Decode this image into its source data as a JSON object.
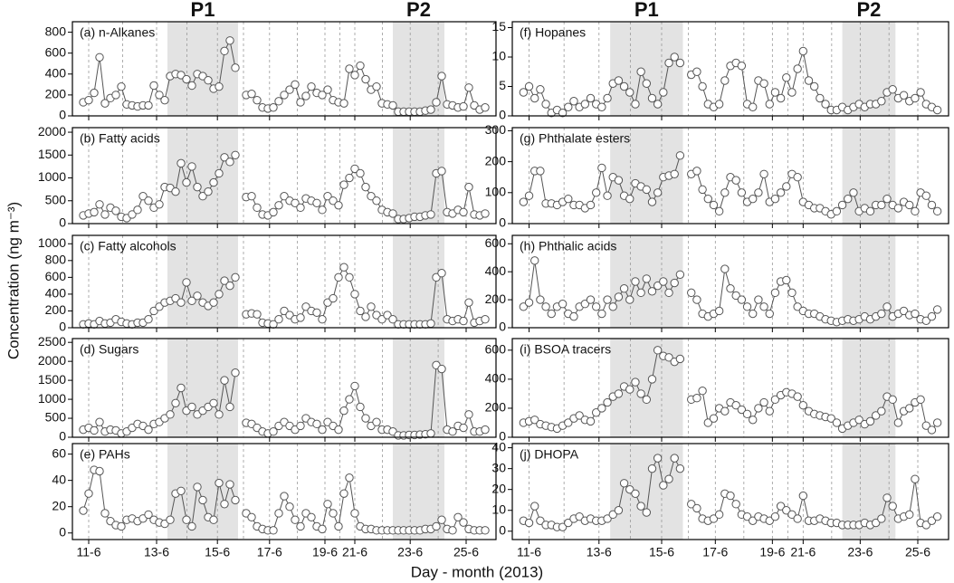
{
  "ylabel": "Concentration (ng m⁻³)",
  "xlabel": "Day - month (2013)",
  "periods": [
    {
      "label": "P1",
      "xrange": [
        15.5,
        28.5
      ]
    },
    {
      "label": "P2",
      "xrange": [
        57,
        66.5
      ]
    }
  ],
  "x_axis": {
    "xlim": [
      -2,
      76
    ],
    "xticks": [
      {
        "value": 1,
        "label": "11-6"
      },
      {
        "value": 13.5,
        "label": "13-6"
      },
      {
        "value": 24.7,
        "label": "15-6"
      },
      {
        "value": 34.3,
        "label": "17-6"
      },
      {
        "value": 44.5,
        "label": "19-6"
      },
      {
        "value": 50,
        "label": "21-6"
      },
      {
        "value": 60.2,
        "label": "23-6"
      },
      {
        "value": 70.5,
        "label": "25-6"
      }
    ]
  },
  "chart_data": [
    {
      "type": "line",
      "label": "(a) n-Alkanes",
      "color": "#555555",
      "ylim": [
        0,
        900
      ],
      "yticks": [
        0,
        200,
        400,
        600,
        800
      ],
      "values": [
        130,
        150,
        220,
        560,
        120,
        170,
        200,
        280,
        110,
        100,
        90,
        100,
        100,
        290,
        200,
        150,
        380,
        400,
        390,
        350,
        290,
        400,
        380,
        340,
        260,
        280,
        620,
        720,
        460,
        null,
        200,
        210,
        150,
        80,
        70,
        80,
        140,
        200,
        250,
        300,
        130,
        190,
        280,
        220,
        200,
        250,
        150,
        130,
        120,
        450,
        390,
        480,
        350,
        250,
        280,
        120,
        110,
        100,
        40,
        40,
        40,
        40,
        40,
        50,
        60,
        130,
        380,
        110,
        100,
        80,
        90,
        270,
        100,
        60,
        80
      ]
    },
    {
      "type": "line",
      "label": "(b) Fatty acids",
      "color": "#555555",
      "ylim": [
        0,
        2100
      ],
      "yticks": [
        0,
        500,
        1000,
        1500,
        2000
      ],
      "values": [
        180,
        220,
        250,
        420,
        200,
        350,
        280,
        150,
        120,
        200,
        300,
        600,
        500,
        350,
        420,
        800,
        780,
        700,
        1320,
        900,
        1250,
        800,
        600,
        700,
        900,
        1100,
        1450,
        1350,
        1500,
        null,
        580,
        600,
        350,
        200,
        180,
        250,
        400,
        600,
        500,
        450,
        350,
        550,
        500,
        450,
        300,
        600,
        500,
        400,
        850,
        1000,
        1200,
        1100,
        800,
        600,
        500,
        300,
        250,
        220,
        100,
        100,
        120,
        150,
        150,
        180,
        200,
        1100,
        1150,
        250,
        220,
        300,
        250,
        800,
        200,
        180,
        220
      ]
    },
    {
      "type": "line",
      "label": "(c) Fatty alcohols",
      "color": "#555555",
      "ylim": [
        0,
        1100
      ],
      "yticks": [
        0,
        200,
        400,
        600,
        800,
        1000
      ],
      "values": [
        40,
        50,
        40,
        80,
        50,
        60,
        100,
        70,
        50,
        40,
        60,
        60,
        100,
        200,
        250,
        300,
        320,
        350,
        300,
        540,
        320,
        380,
        300,
        260,
        300,
        400,
        560,
        500,
        600,
        null,
        160,
        170,
        160,
        60,
        50,
        40,
        100,
        200,
        150,
        100,
        120,
        250,
        200,
        180,
        100,
        300,
        350,
        600,
        720,
        600,
        400,
        200,
        130,
        250,
        150,
        100,
        150,
        100,
        40,
        40,
        40,
        40,
        40,
        40,
        50,
        600,
        650,
        100,
        80,
        100,
        80,
        300,
        60,
        80,
        100
      ]
    },
    {
      "type": "line",
      "label": "(d) Sugars",
      "color": "#555555",
      "ylim": [
        0,
        2600
      ],
      "yticks": [
        0,
        500,
        1000,
        1500,
        2000,
        2500
      ],
      "values": [
        200,
        250,
        180,
        400,
        150,
        200,
        180,
        100,
        150,
        250,
        350,
        300,
        200,
        350,
        400,
        500,
        600,
        900,
        1300,
        700,
        800,
        600,
        700,
        800,
        900,
        600,
        1500,
        800,
        1700,
        null,
        380,
        350,
        250,
        150,
        100,
        150,
        300,
        400,
        300,
        200,
        300,
        500,
        400,
        350,
        200,
        400,
        300,
        200,
        700,
        1000,
        1350,
        800,
        500,
        300,
        400,
        200,
        200,
        150,
        50,
        50,
        60,
        60,
        70,
        80,
        100,
        1900,
        1800,
        200,
        150,
        300,
        250,
        600,
        150,
        150,
        200
      ]
    },
    {
      "type": "line",
      "label": "(e) PAHs",
      "color": "#555555",
      "ylim": [
        -5,
        68
      ],
      "yticks": [
        0,
        20,
        40,
        60
      ],
      "values": [
        17,
        30,
        48,
        47,
        15,
        9,
        6,
        5,
        10,
        11,
        9,
        11,
        14,
        10,
        8,
        7,
        10,
        30,
        32,
        10,
        5,
        35,
        25,
        12,
        10,
        38,
        22,
        37,
        25,
        null,
        15,
        12,
        5,
        3,
        2,
        2,
        15,
        28,
        20,
        10,
        5,
        15,
        12,
        5,
        3,
        22,
        15,
        5,
        30,
        42,
        15,
        5,
        3,
        3,
        2,
        2,
        2,
        2,
        2,
        2,
        2,
        2,
        2,
        3,
        3,
        5,
        10,
        3,
        2,
        12,
        8,
        3,
        2,
        2,
        2
      ]
    },
    {
      "type": "line",
      "label": "(f) Hopanes",
      "color": "#555555",
      "ylim": [
        0,
        16
      ],
      "yticks": [
        0,
        5,
        10,
        15
      ],
      "values": [
        4,
        5,
        3,
        4.5,
        2,
        0.5,
        1,
        0.5,
        1.5,
        2.5,
        1.5,
        2,
        3,
        2,
        1.5,
        3,
        5.5,
        6,
        5,
        4,
        2,
        7.5,
        5.5,
        3,
        2,
        4,
        9,
        10,
        9,
        null,
        7,
        7.5,
        5,
        2,
        1.5,
        2,
        6,
        8.5,
        9,
        8.5,
        2,
        1.5,
        6,
        5.5,
        2,
        4,
        3,
        6.5,
        4,
        8,
        11,
        6,
        5,
        3,
        2,
        1,
        1,
        1.5,
        1,
        1.5,
        2,
        1.5,
        2,
        2,
        2.5,
        4,
        4.5,
        3,
        3.5,
        2.5,
        3,
        4,
        2,
        1.5,
        1
      ]
    },
    {
      "type": "line",
      "label": "(g) Phthalate esters",
      "color": "#555555",
      "ylim": [
        0,
        310
      ],
      "yticks": [
        0,
        100,
        200,
        300
      ],
      "values": [
        70,
        90,
        170,
        170,
        65,
        65,
        60,
        70,
        80,
        60,
        60,
        50,
        60,
        100,
        180,
        90,
        150,
        140,
        90,
        80,
        130,
        120,
        110,
        70,
        100,
        150,
        155,
        160,
        220,
        null,
        160,
        170,
        110,
        80,
        60,
        40,
        100,
        150,
        140,
        100,
        70,
        80,
        100,
        160,
        70,
        80,
        100,
        120,
        160,
        150,
        70,
        60,
        50,
        50,
        40,
        30,
        40,
        60,
        80,
        100,
        40,
        50,
        40,
        60,
        60,
        80,
        60,
        50,
        70,
        60,
        40,
        100,
        90,
        60,
        40
      ]
    },
    {
      "type": "line",
      "label": "(h) Phthalic acids",
      "color": "#555555",
      "ylim": [
        0,
        660
      ],
      "yticks": [
        0,
        200,
        400,
        600
      ],
      "values": [
        150,
        180,
        480,
        200,
        150,
        100,
        150,
        170,
        100,
        80,
        150,
        170,
        200,
        150,
        100,
        200,
        150,
        220,
        280,
        200,
        330,
        250,
        350,
        260,
        300,
        330,
        250,
        320,
        380,
        null,
        250,
        200,
        100,
        80,
        100,
        120,
        420,
        280,
        230,
        200,
        150,
        100,
        200,
        150,
        100,
        250,
        330,
        340,
        250,
        150,
        120,
        100,
        100,
        80,
        60,
        50,
        40,
        50,
        60,
        50,
        60,
        80,
        60,
        80,
        100,
        150,
        80,
        100,
        120,
        90,
        100,
        60,
        50,
        80,
        130
      ]
    },
    {
      "type": "line",
      "label": "(i) BSOA tracers",
      "color": "#555555",
      "ylim": [
        0,
        680
      ],
      "yticks": [
        0,
        200,
        400,
        600
      ],
      "values": [
        100,
        110,
        120,
        90,
        80,
        70,
        60,
        80,
        100,
        130,
        150,
        120,
        110,
        170,
        200,
        240,
        280,
        300,
        350,
        330,
        380,
        300,
        260,
        400,
        600,
        560,
        550,
        520,
        540,
        null,
        260,
        270,
        320,
        100,
        130,
        200,
        180,
        240,
        220,
        190,
        160,
        120,
        200,
        240,
        180,
        260,
        290,
        310,
        300,
        280,
        220,
        180,
        160,
        150,
        140,
        130,
        100,
        60,
        80,
        100,
        120,
        90,
        110,
        150,
        180,
        280,
        260,
        100,
        180,
        200,
        240,
        260,
        80,
        50,
        100
      ]
    },
    {
      "type": "line",
      "label": "(j) DHOPA",
      "color": "#555555",
      "ylim": [
        -4,
        42
      ],
      "yticks": [
        0,
        10,
        20,
        30,
        40
      ],
      "values": [
        5,
        4,
        12,
        5,
        3,
        3,
        2,
        2,
        4,
        6,
        7,
        5,
        6,
        5,
        5,
        6,
        8,
        10,
        23,
        20,
        18,
        12,
        9,
        30,
        35,
        22,
        25,
        35,
        30,
        null,
        13,
        11,
        6,
        5,
        6,
        8,
        18,
        17,
        13,
        8,
        7,
        5,
        7,
        6,
        5,
        7,
        12,
        10,
        8,
        6,
        17,
        5,
        5,
        6,
        5,
        4,
        4,
        3,
        3,
        3,
        3,
        4,
        3,
        4,
        6,
        16,
        12,
        6,
        7,
        8,
        25,
        4,
        3,
        5,
        7
      ]
    }
  ]
}
